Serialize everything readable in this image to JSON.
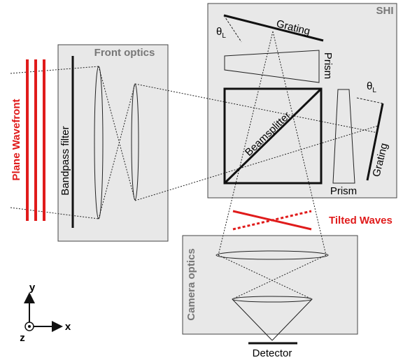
{
  "wavefront": {
    "label": "Plane Wavefront"
  },
  "front_optics": {
    "title": "Front optics",
    "filter": "Bandpass filter"
  },
  "shi": {
    "title": "SHI",
    "grating_top": "Grating",
    "prism_top": "Prism",
    "angle_top": "θ",
    "angle_top_sub": "L",
    "beamsplitter": "Beamsplitter",
    "grating_right": "Grating",
    "prism_right": "Prism",
    "angle_right": "θ",
    "angle_right_sub": "L"
  },
  "tilted": {
    "label": "Tilted Waves"
  },
  "camera_optics": {
    "title": "Camera optics",
    "detector": "Detector"
  },
  "axes": {
    "y": "y",
    "x": "x",
    "z": "z"
  }
}
